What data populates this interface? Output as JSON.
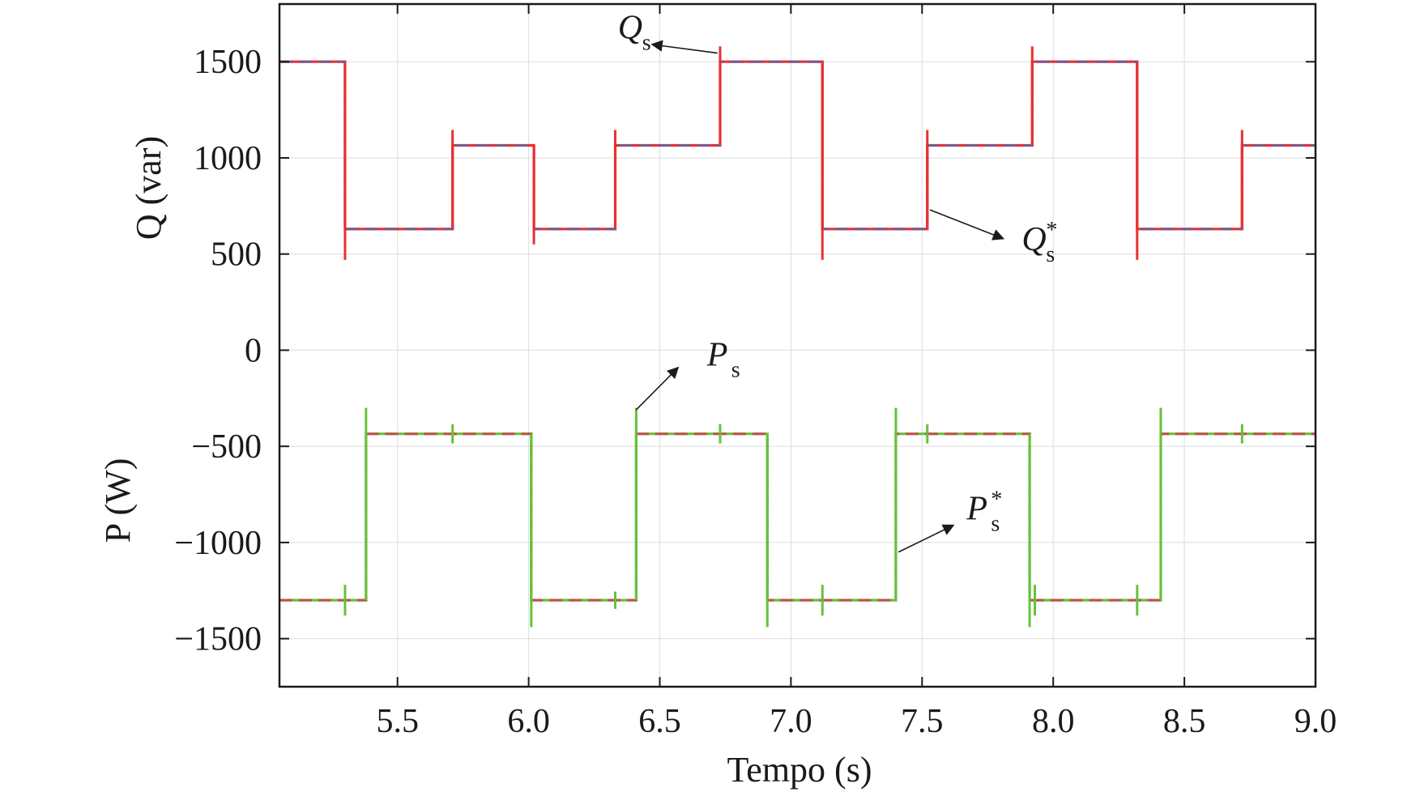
{
  "chart_data": {
    "type": "line",
    "xlabel": "Tempo (s)",
    "ylabel_top": "Q (var)",
    "ylabel_bottom": "P (W)",
    "xlim": [
      5.05,
      9.0
    ],
    "ylim": [
      -1750,
      1800
    ],
    "x_ticks": [
      5.5,
      6.0,
      6.5,
      7.0,
      7.5,
      8.0,
      8.5,
      9.0
    ],
    "x_tick_labels": [
      "5.5",
      "6.0",
      "6.5",
      "7.0",
      "7.5",
      "8.0",
      "8.5",
      "9.0"
    ],
    "y_ticks": [
      1500,
      1000,
      500,
      0,
      -500,
      -1000,
      -1500
    ],
    "y_tick_labels": [
      "1500",
      "1000",
      "500",
      "0",
      "−500",
      "−1000",
      "−1500"
    ],
    "grid": true,
    "colors": {
      "Qs": "#e83030",
      "Qs_ref": "#7a5a8a",
      "Ps": "#66c23a",
      "Ps_ref": "#c0504d"
    },
    "series": [
      {
        "key": "Qs",
        "x": [
          5.05,
          5.3,
          5.3,
          5.71,
          5.71,
          6.02,
          6.02,
          6.33,
          6.33,
          6.73,
          6.73,
          7.12,
          7.12,
          7.52,
          7.52,
          7.92,
          7.92,
          8.32,
          8.32,
          8.72,
          8.72,
          9.0
        ],
        "y": [
          1500,
          1500,
          630,
          630,
          1065,
          1065,
          630,
          630,
          1065,
          1065,
          1500,
          1500,
          630,
          630,
          1065,
          1065,
          1500,
          1500,
          630,
          630,
          1065,
          1065
        ]
      },
      {
        "key": "Qs_ref",
        "x": [
          5.05,
          5.3,
          5.3,
          5.71,
          5.71,
          6.02,
          6.02,
          6.33,
          6.33,
          6.73,
          6.73,
          7.12,
          7.12,
          7.52,
          7.52,
          7.92,
          7.92,
          8.32,
          8.32,
          8.72,
          8.72,
          9.0
        ],
        "y": [
          1500,
          1500,
          630,
          630,
          1065,
          1065,
          630,
          630,
          1065,
          1065,
          1500,
          1500,
          630,
          630,
          1065,
          1065,
          1500,
          1500,
          630,
          630,
          1065,
          1065
        ]
      },
      {
        "key": "Ps",
        "x": [
          5.05,
          5.38,
          5.38,
          6.01,
          6.01,
          6.41,
          6.41,
          6.91,
          6.91,
          7.4,
          7.4,
          7.91,
          7.91,
          8.41,
          8.41,
          9.0
        ],
        "y": [
          -1300,
          -1300,
          -435,
          -435,
          -1300,
          -1300,
          -435,
          -435,
          -1300,
          -1300,
          -435,
          -435,
          -1300,
          -1300,
          -435,
          -435
        ]
      },
      {
        "key": "Ps_ref",
        "x": [
          5.05,
          5.38,
          5.38,
          6.01,
          6.01,
          6.41,
          6.41,
          6.91,
          6.91,
          7.4,
          7.4,
          7.91,
          7.91,
          8.41,
          8.41,
          9.0
        ],
        "y": [
          -1300,
          -1300,
          -435,
          -435,
          -1300,
          -1300,
          -435,
          -435,
          -1300,
          -1300,
          -435,
          -435,
          -1300,
          -1300,
          -435,
          -435
        ]
      }
    ],
    "spikes_q": [
      {
        "x": 5.3,
        "y1": 470,
        "y2": 1500
      },
      {
        "x": 5.71,
        "y1": 630,
        "y2": 1145
      },
      {
        "x": 6.02,
        "y1": 550,
        "y2": 1065
      },
      {
        "x": 6.33,
        "y1": 630,
        "y2": 1145
      },
      {
        "x": 6.73,
        "y1": 1065,
        "y2": 1580
      },
      {
        "x": 7.12,
        "y1": 470,
        "y2": 1500
      },
      {
        "x": 7.52,
        "y1": 630,
        "y2": 1145
      },
      {
        "x": 7.92,
        "y1": 1065,
        "y2": 1580
      },
      {
        "x": 8.32,
        "y1": 470,
        "y2": 1500
      },
      {
        "x": 8.72,
        "y1": 630,
        "y2": 1145
      }
    ],
    "spikes_p": [
      {
        "x": 5.3,
        "y1": -1380,
        "y2": -1220
      },
      {
        "x": 5.38,
        "y1": -1300,
        "y2": -300
      },
      {
        "x": 5.71,
        "y1": -485,
        "y2": -385
      },
      {
        "x": 6.01,
        "y1": -1440,
        "y2": -435
      },
      {
        "x": 6.33,
        "y1": -1345,
        "y2": -1255
      },
      {
        "x": 6.41,
        "y1": -1300,
        "y2": -300
      },
      {
        "x": 6.73,
        "y1": -485,
        "y2": -385
      },
      {
        "x": 6.91,
        "y1": -1440,
        "y2": -435
      },
      {
        "x": 7.12,
        "y1": -1380,
        "y2": -1220
      },
      {
        "x": 7.4,
        "y1": -1300,
        "y2": -300
      },
      {
        "x": 7.52,
        "y1": -485,
        "y2": -385
      },
      {
        "x": 7.91,
        "y1": -1440,
        "y2": -435
      },
      {
        "x": 7.93,
        "y1": -1380,
        "y2": -1220
      },
      {
        "x": 8.32,
        "y1": -1380,
        "y2": -1220
      },
      {
        "x": 8.41,
        "y1": -1300,
        "y2": -300
      },
      {
        "x": 8.72,
        "y1": -485,
        "y2": -385
      }
    ],
    "annotations": [
      {
        "key": "ann_qs",
        "main": "Q",
        "sub": "s",
        "star": "",
        "text_x": 6.34,
        "text_y": 1620,
        "arrow_from_x": 6.72,
        "arrow_from_y": 1545,
        "arrow_to_x": 6.47,
        "arrow_to_y": 1590
      },
      {
        "key": "ann_qs_ref",
        "main": "Q",
        "sub": "s",
        "star": "*",
        "text_x": 7.88,
        "text_y": 520,
        "arrow_from_x": 7.53,
        "arrow_from_y": 730,
        "arrow_to_x": 7.81,
        "arrow_to_y": 580
      },
      {
        "key": "ann_ps",
        "main": "P",
        "sub": "s",
        "star": "",
        "text_x": 6.68,
        "text_y": -80,
        "arrow_from_x": 6.41,
        "arrow_from_y": -310,
        "arrow_to_x": 6.57,
        "arrow_to_y": -90
      },
      {
        "key": "ann_ps_ref",
        "main": "P",
        "sub": "s",
        "star": "*",
        "text_x": 7.67,
        "text_y": -880,
        "arrow_from_x": 7.41,
        "arrow_from_y": -1050,
        "arrow_to_x": 7.62,
        "arrow_to_y": -910
      }
    ]
  }
}
